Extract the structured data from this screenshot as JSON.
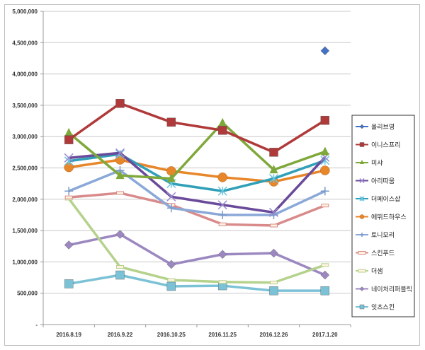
{
  "chart_data": {
    "type": "line",
    "title": "",
    "xlabel": "",
    "ylabel": "",
    "ylim": [
      0,
      5000000
    ],
    "y_ticks": [
      "-",
      "500,000",
      "1,000,000",
      "1,500,000",
      "2,000,000",
      "2,500,000",
      "3,000,000",
      "3,500,000",
      "4,000,000",
      "4,500,000",
      "5,000,000"
    ],
    "grid": true,
    "legend_position": "right",
    "categories": [
      "2016.8.19",
      "2016.9.22",
      "2016.10.25",
      "2016.11.25",
      "2016.12.26",
      "2017.1.20"
    ],
    "series": [
      {
        "name": "올리브영",
        "color": "#4472C4",
        "marker": "diamond",
        "values": [
          null,
          null,
          null,
          null,
          null,
          4370000
        ]
      },
      {
        "name": "이니스프리",
        "color": "#B03A3A",
        "marker": "square",
        "values": [
          2950000,
          3530000,
          3230000,
          3100000,
          2750000,
          3260000
        ]
      },
      {
        "name": "미샤",
        "color": "#7FA83A",
        "marker": "triangle",
        "values": [
          3060000,
          2380000,
          2330000,
          3220000,
          2470000,
          2760000
        ]
      },
      {
        "name": "아리따움",
        "color": "#6A4A9A",
        "marker": "x",
        "values": [
          2660000,
          2740000,
          2040000,
          1910000,
          1790000,
          2670000
        ]
      },
      {
        "name": "더페이스샵",
        "color": "#2FA0B8",
        "marker": "star",
        "values": [
          2610000,
          2720000,
          2250000,
          2130000,
          2330000,
          2620000
        ]
      },
      {
        "name": "에뛰드하우스",
        "color": "#E8862A",
        "marker": "circle",
        "values": [
          2510000,
          2630000,
          2450000,
          2350000,
          2280000,
          2460000
        ]
      },
      {
        "name": "토니모리",
        "color": "#8AA8D8",
        "marker": "plus",
        "values": [
          2130000,
          2460000,
          1860000,
          1750000,
          1750000,
          2130000
        ]
      },
      {
        "name": "스킨푸드",
        "color": "#D98A8A",
        "marker": "dash",
        "values": [
          2030000,
          2100000,
          1910000,
          1600000,
          1580000,
          1900000
        ]
      },
      {
        "name": "더샘",
        "color": "#B5D28C",
        "marker": "dash",
        "values": [
          2010000,
          920000,
          710000,
          680000,
          670000,
          950000
        ]
      },
      {
        "name": "네이처리퍼블릭",
        "color": "#9C88C0",
        "marker": "diamond",
        "values": [
          1270000,
          1440000,
          960000,
          1120000,
          1140000,
          790000
        ]
      },
      {
        "name": "잇츠스킨",
        "color": "#7CC2D6",
        "marker": "square",
        "values": [
          650000,
          790000,
          610000,
          620000,
          540000,
          540000
        ]
      }
    ]
  }
}
